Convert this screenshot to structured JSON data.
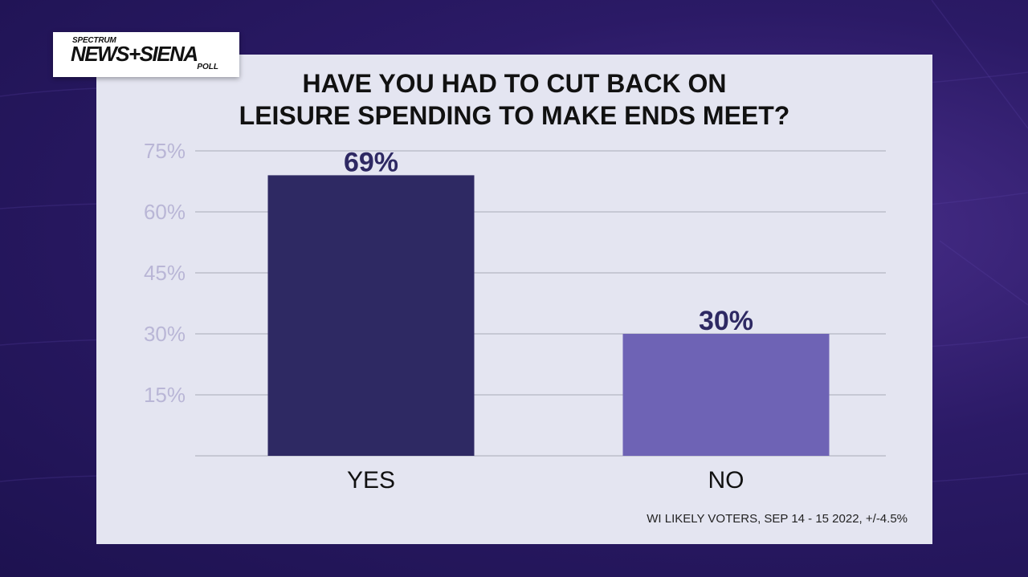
{
  "logo": {
    "brand_top": "SPECTRUM",
    "brand_main": "NEWS+SIENA",
    "brand_sub": "POLL"
  },
  "title_lines": [
    "HAVE YOU HAD TO CUT BACK ON",
    "LEISURE SPENDING TO MAKE ENDS MEET?"
  ],
  "footer": "WI LIKELY VOTERS, SEP 14 - 15 2022, +/-4.5%",
  "colors": {
    "background": "#2b1a66",
    "card": "#e4e5f1",
    "bar_yes": "#2e2963",
    "bar_no": "#6e63b5",
    "label": "#2e2963",
    "tick": "#b9b6d6",
    "grid": "#c6c8d4"
  },
  "chart_data": {
    "type": "bar",
    "categories": [
      "YES",
      "NO"
    ],
    "values": [
      69,
      30
    ],
    "data_labels": [
      "69%",
      "30%"
    ],
    "ylim": [
      0,
      75
    ],
    "yticks": [
      15,
      30,
      45,
      60,
      75
    ],
    "ytick_labels": [
      "15%",
      "30%",
      "45%",
      "60%",
      "75%"
    ],
    "grid": true,
    "xlabel": "",
    "ylabel": ""
  }
}
